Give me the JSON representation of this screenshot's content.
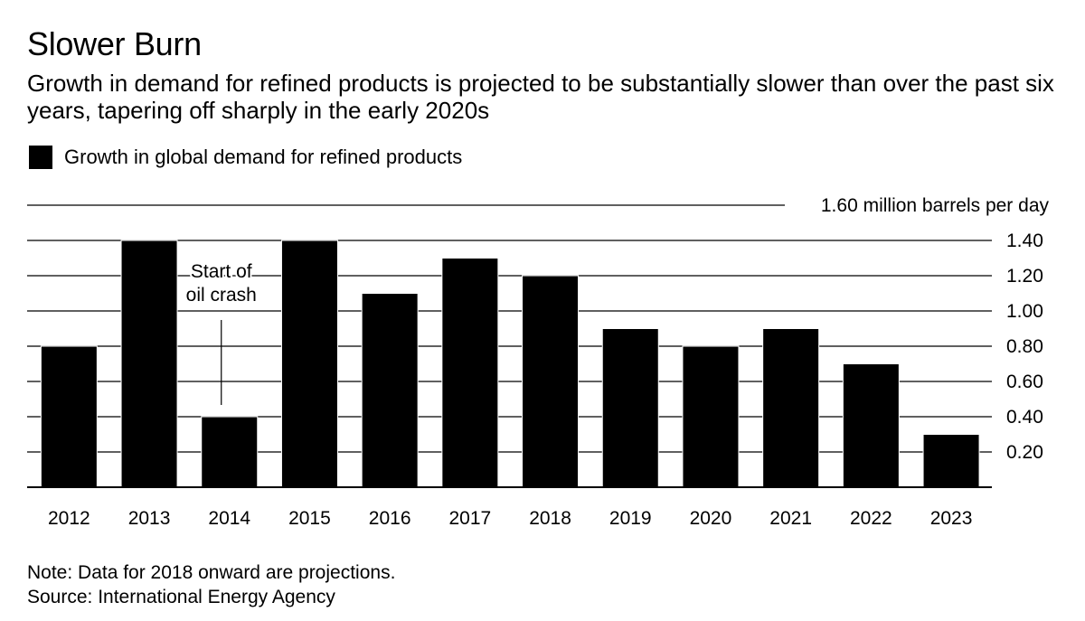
{
  "header": {
    "title": "Slower Burn",
    "subtitle": "Growth in demand for refined products is projected to be substantially slower than over the past six years, tapering off sharply in the early 2020s"
  },
  "legend": {
    "label": "Growth in global demand for refined products",
    "color": "#000000"
  },
  "annotation": {
    "lines": [
      "Start of",
      "oil crash"
    ],
    "category": "2014"
  },
  "footer": {
    "note": "Note: Data for 2018 onward are projections.",
    "source": "Source: International Energy Agency"
  },
  "chart_data": {
    "type": "bar",
    "title": "Slower Burn",
    "series": [
      {
        "name": "Growth in global demand for refined products",
        "values": [
          0.8,
          1.4,
          0.4,
          1.4,
          1.1,
          1.3,
          1.2,
          0.9,
          0.8,
          0.9,
          0.7,
          0.3
        ]
      }
    ],
    "categories": [
      "2012",
      "2013",
      "2014",
      "2015",
      "2016",
      "2017",
      "2018",
      "2019",
      "2020",
      "2021",
      "2022",
      "2023"
    ],
    "y_ticks": [
      "0.20",
      "0.40",
      "0.60",
      "0.80",
      "1.00",
      "1.20",
      "1.40"
    ],
    "y_top_label": "1.60 million barrels per day",
    "ylim": [
      0,
      1.6
    ],
    "grid": true,
    "y_axis_position": "right",
    "bar_color": "#000000"
  }
}
